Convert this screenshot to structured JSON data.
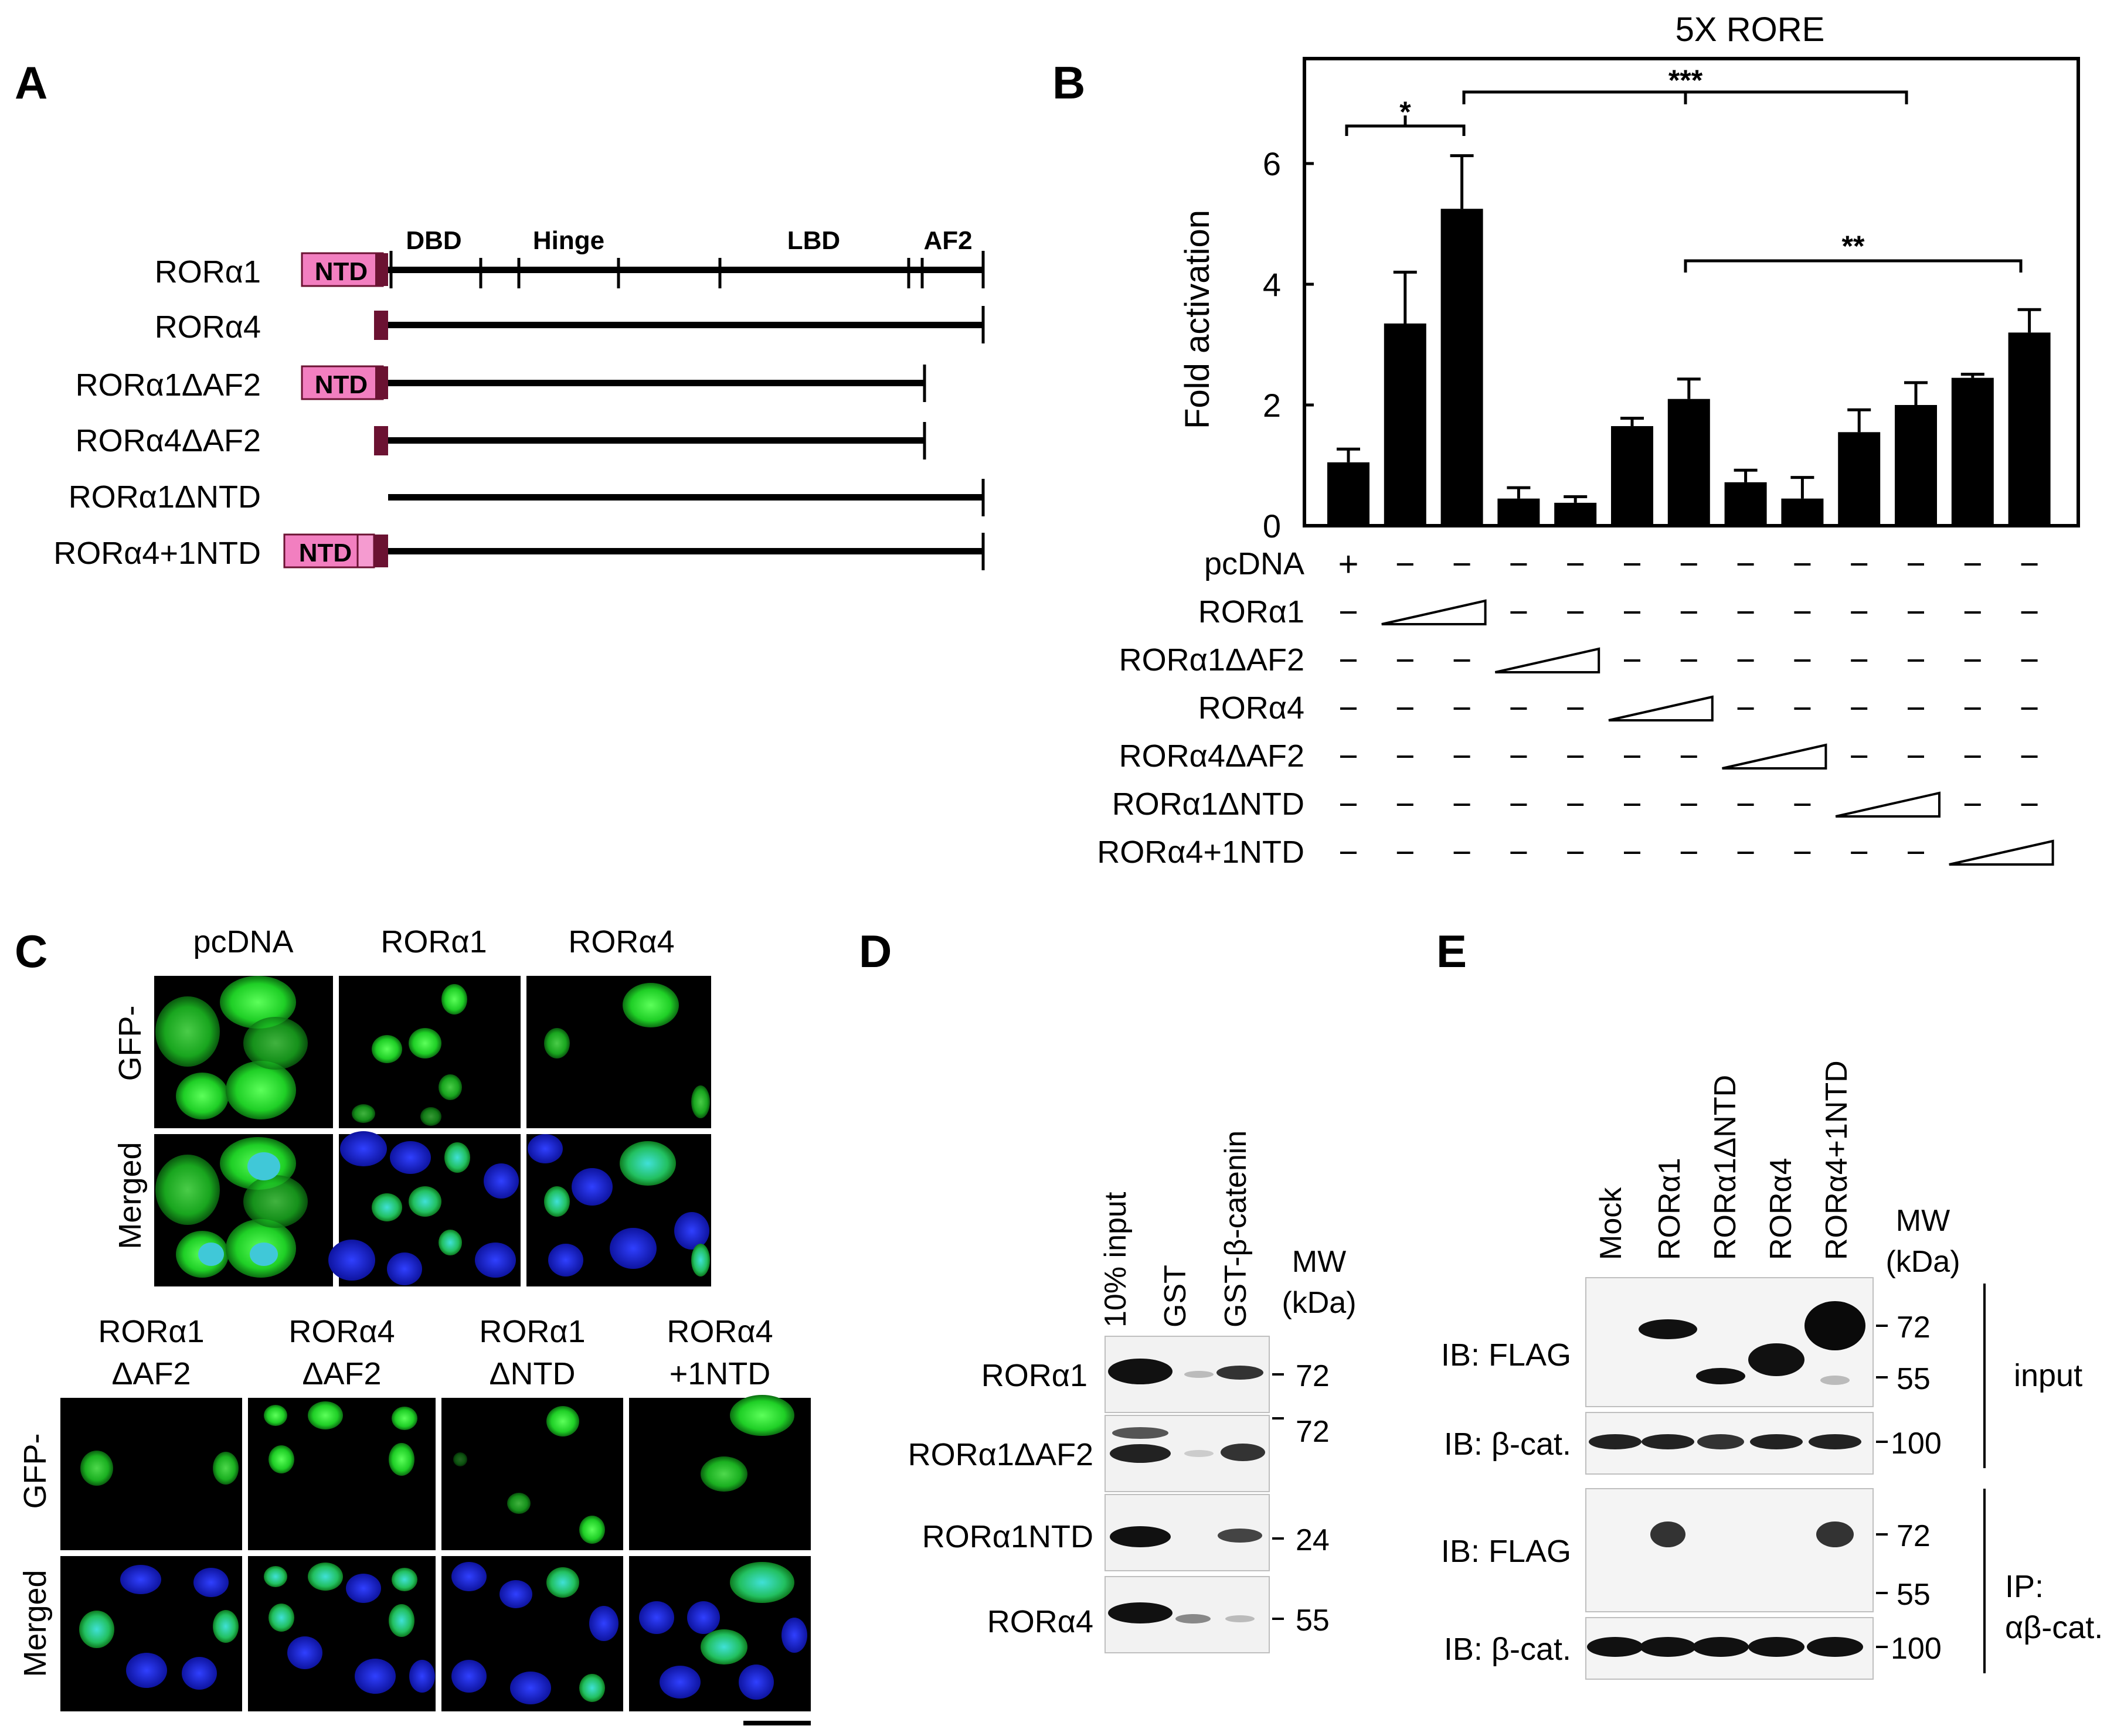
{
  "panels": {
    "a": "A",
    "b": "B",
    "c": "C",
    "d": "D",
    "e": "E"
  },
  "panel_a": {
    "ntd_label": "NTD",
    "domains": [
      "DBD",
      "Hinge",
      "LBD",
      "AF2"
    ],
    "constructs": [
      "RORα1",
      "RORα4",
      "RORα1ΔAF2",
      "RORα4ΔAF2",
      "RORα1ΔNTD",
      "RORα4+1NTD"
    ],
    "colors": {
      "ntd_fill": "#f27fc0",
      "ntd_dark": "#6b1232"
    }
  },
  "panel_b": {
    "significance": [
      "*",
      "***",
      "**"
    ],
    "plus": "+",
    "minus": "–",
    "construct_rows": [
      "pcDNA",
      "RORα1",
      "RORα1ΔAF2",
      "RORα4",
      "RORα4ΔAF2",
      "RORα1ΔNTD",
      "RORα4+1NTD"
    ]
  },
  "chart_data": {
    "type": "bar",
    "title": "5X RORE",
    "xlabel": "",
    "ylabel": "Fold activation",
    "ylim": [
      0,
      7.5
    ],
    "yticks": [
      0,
      2,
      4,
      6
    ],
    "grid": false,
    "values": [
      1.05,
      3.35,
      5.25,
      0.45,
      0.38,
      1.65,
      2.1,
      0.72,
      0.45,
      1.55,
      2.0,
      2.45,
      3.2
    ],
    "errors": [
      0.22,
      0.85,
      0.88,
      0.18,
      0.1,
      0.13,
      0.33,
      0.2,
      0.35,
      0.37,
      0.37,
      0.06,
      0.38
    ]
  },
  "panel_c": {
    "top_headers": [
      "pcDNA",
      "RORα1",
      "RORα4"
    ],
    "bottom_headers": [
      [
        "RORα1",
        "ΔAF2"
      ],
      [
        "RORα4",
        "ΔAF2"
      ],
      [
        "RORα1",
        "ΔNTD"
      ],
      [
        "RORα4",
        "+1NTD"
      ]
    ],
    "row_labels": [
      "GFP-",
      "Merged"
    ],
    "colors": {
      "gfp": "#22e024",
      "dapi": "#1a22d8",
      "background": "#000000"
    }
  },
  "panel_d": {
    "lanes": [
      "10% input",
      "GST",
      "GST-β-catenin"
    ],
    "mw_header": [
      "MW",
      "(kDa)"
    ],
    "rows": [
      {
        "label": "RORα1",
        "mw": "72"
      },
      {
        "label": "RORα1ΔAF2",
        "mw": "72"
      },
      {
        "label": "RORα1NTD",
        "mw": "24"
      },
      {
        "label": "RORα4",
        "mw": "55"
      }
    ]
  },
  "panel_e": {
    "lanes": [
      "Mock",
      "RORα1",
      "RORα1ΔNTD",
      "RORα4",
      "RORα4+1NTD"
    ],
    "mw_header": [
      "MW",
      "(kDa)"
    ],
    "rows": [
      {
        "label": "IB: FLAG",
        "mw": [
          "72",
          "55"
        ]
      },
      {
        "label": "IB: β-cat.",
        "mw": [
          "100"
        ]
      },
      {
        "label": "IB: FLAG",
        "mw": [
          "72",
          "55"
        ]
      },
      {
        "label": "IB: β-cat.",
        "mw": [
          "100"
        ]
      }
    ],
    "side_labels": {
      "input": "input",
      "ip_1": "IP:",
      "ip_2": "αβ-cat."
    }
  }
}
